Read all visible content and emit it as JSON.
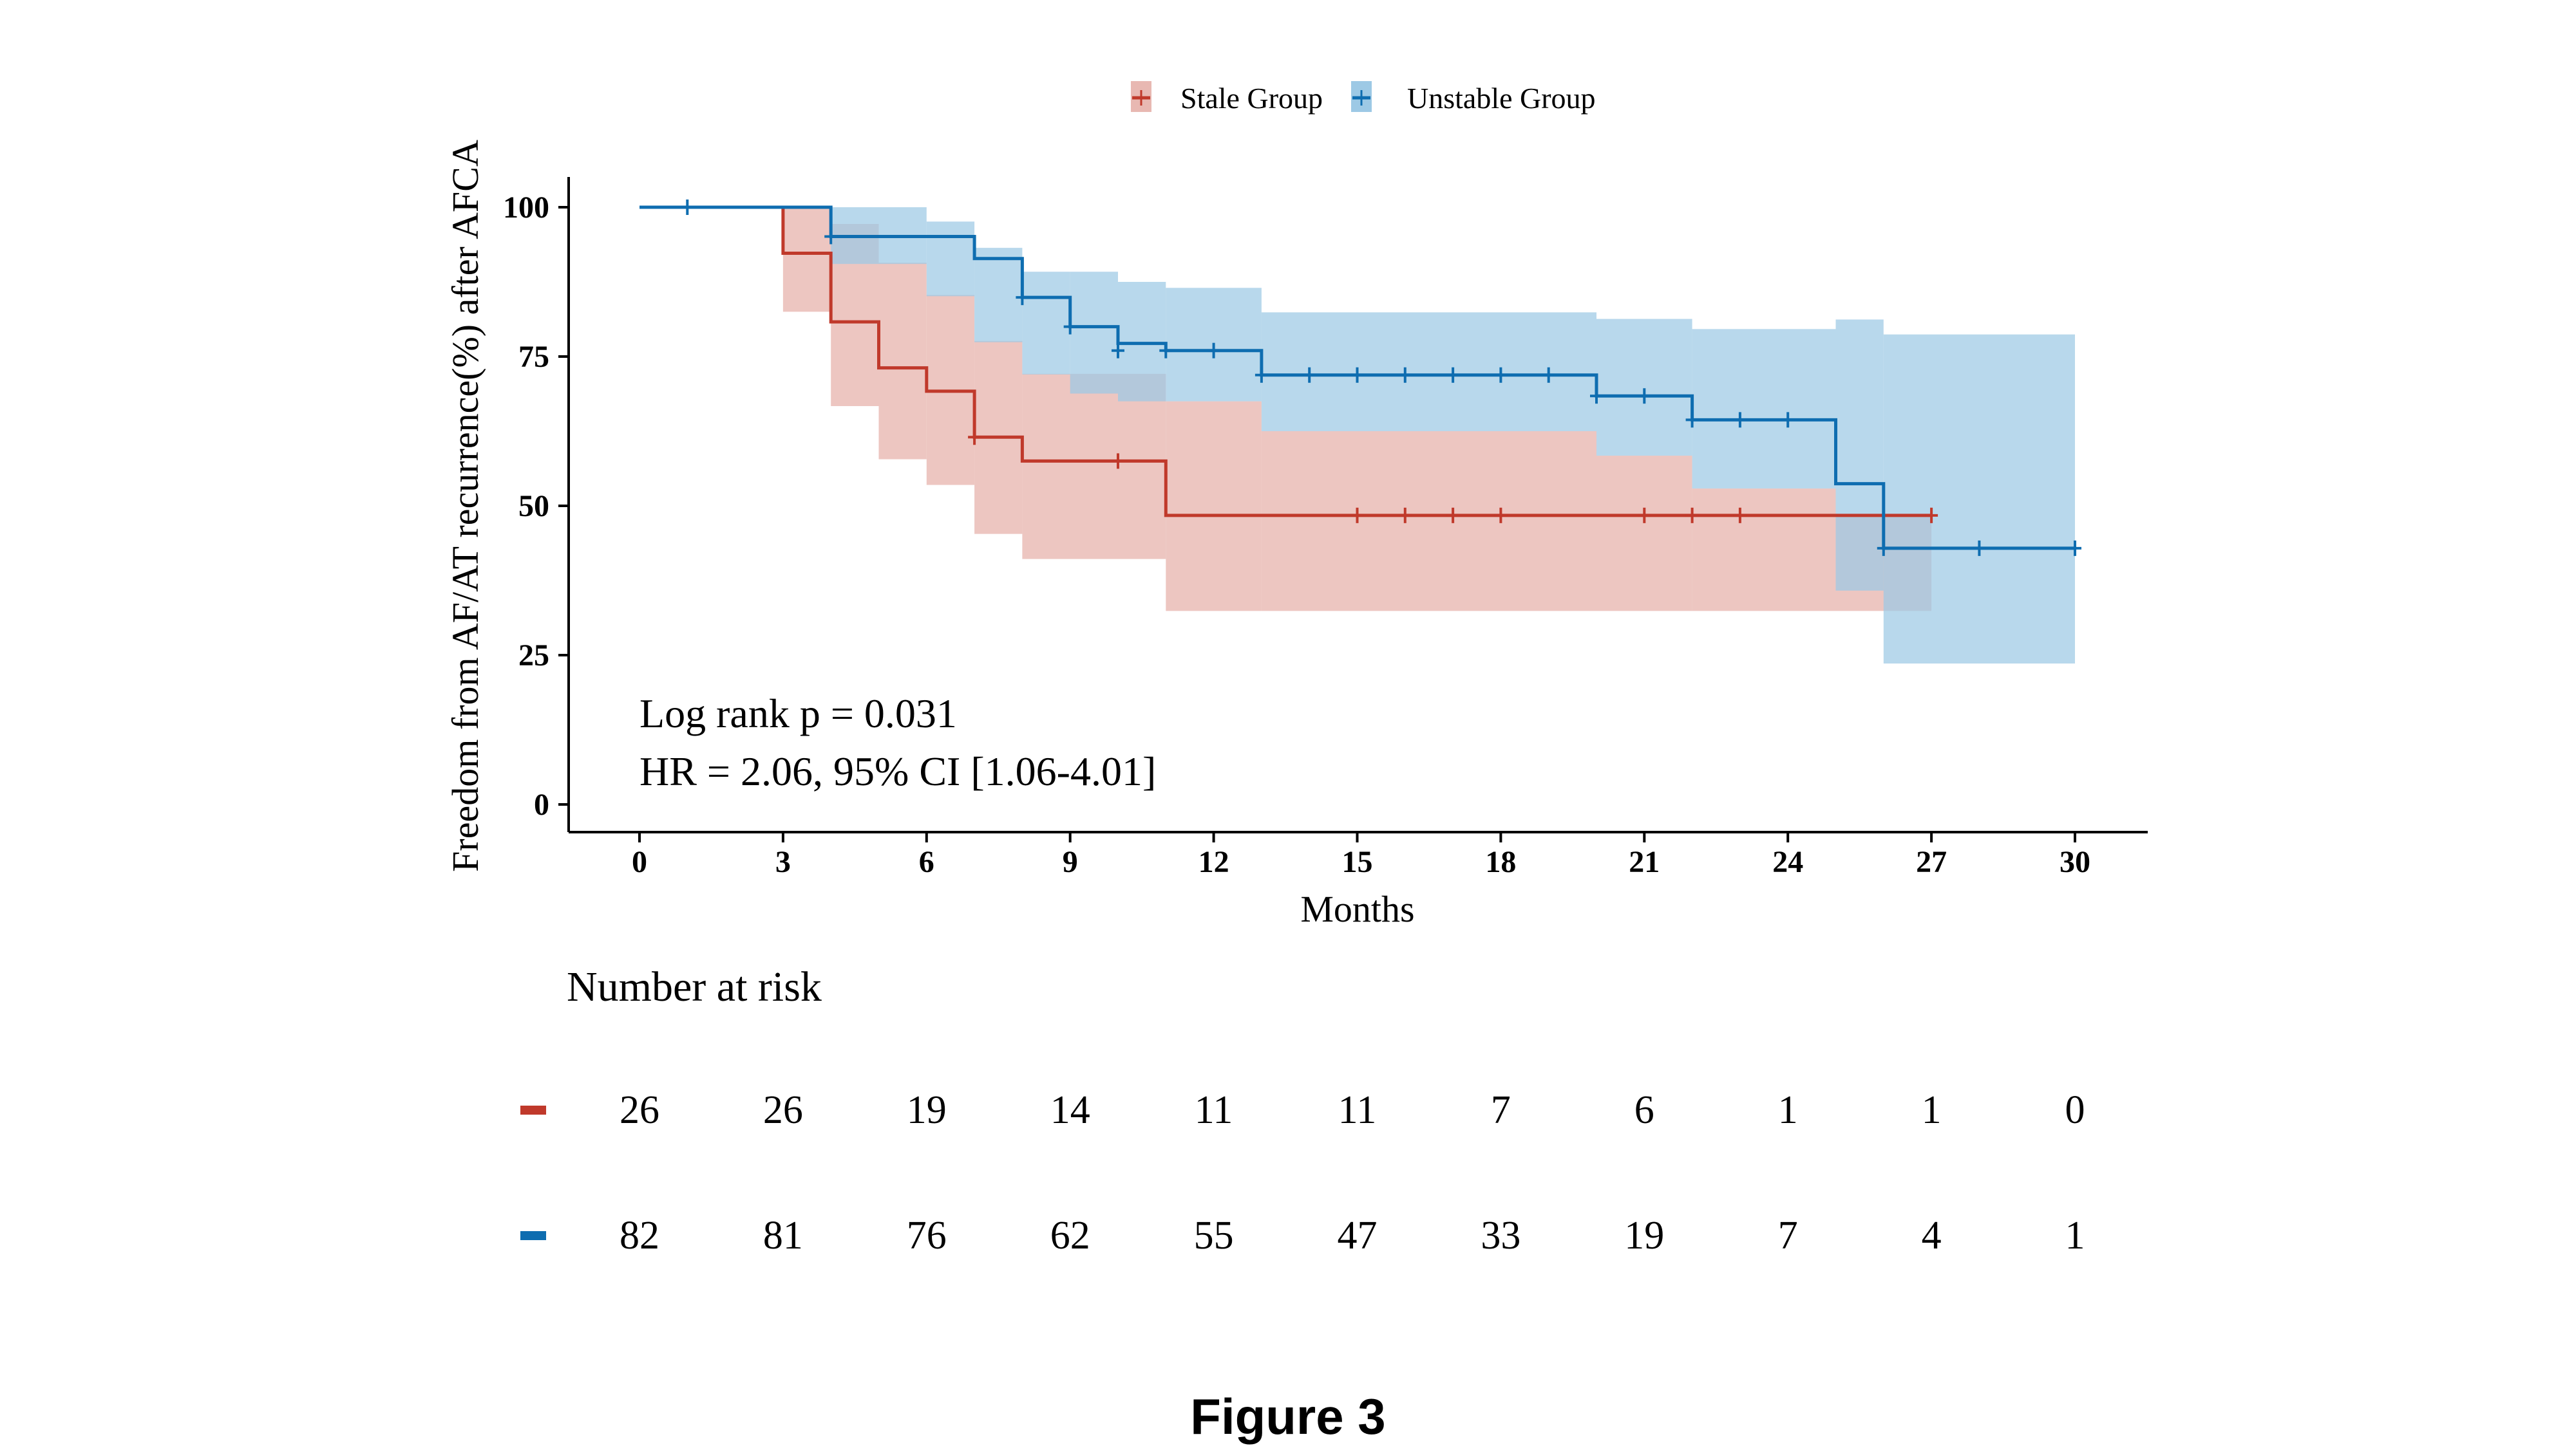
{
  "figure": {
    "caption": "Figure 3"
  },
  "chart_data": {
    "type": "line",
    "subtype": "kaplan-meier step",
    "title": "",
    "xlabel": "Months",
    "ylabel": "Freedom from AF/AT recurrence(%) after AFCA",
    "xlim": [
      0,
      30
    ],
    "ylim": [
      0,
      100
    ],
    "xticks": [
      "0",
      "3",
      "6",
      "9",
      "12",
      "15",
      "18",
      "21",
      "24",
      "27",
      "30"
    ],
    "yticks": [
      "0",
      "25",
      "50",
      "75",
      "100"
    ],
    "grid": false,
    "legend": {
      "position": "top-center",
      "entries": [
        {
          "name": "Stale Group",
          "color": "#C0392B",
          "fill": "#E8B8B2"
        },
        {
          "name": "Unstable Group",
          "color": "#0E6DB0",
          "fill": "#9DC9E5"
        }
      ]
    },
    "annotations": {
      "logrank": "Log rank p = 0.031",
      "hr": "HR = 2.06, 95% CI [1.06-4.01]"
    },
    "series": [
      {
        "name": "Stale Group",
        "color": "#C0392B",
        "steps": [
          [
            0,
            100
          ],
          [
            3,
            92.3
          ],
          [
            4,
            80.8
          ],
          [
            5,
            73.1
          ],
          [
            6,
            69.2
          ],
          [
            7,
            61.5
          ],
          [
            8,
            57.5
          ],
          [
            11,
            48.4
          ]
        ],
        "end": 27,
        "ci_upper": [
          [
            3,
            100
          ],
          [
            4,
            97.2
          ],
          [
            5,
            90.7
          ],
          [
            6,
            85.3
          ],
          [
            7,
            77.6
          ],
          [
            8,
            72.1
          ],
          [
            11,
            67.5
          ],
          [
            13,
            62.5
          ],
          [
            20,
            58.4
          ],
          [
            22,
            52.9
          ],
          [
            25,
            48.4
          ]
        ],
        "ci_lower": [
          [
            3,
            82.5
          ],
          [
            4,
            66.7
          ],
          [
            5,
            57.8
          ],
          [
            6,
            53.5
          ],
          [
            7,
            45.3
          ],
          [
            8,
            41.1
          ],
          [
            11,
            32.4
          ]
        ],
        "censor": [
          [
            7,
            61.5
          ],
          [
            10,
            57.5
          ],
          [
            15,
            48.4
          ],
          [
            16,
            48.4
          ],
          [
            17,
            48.4
          ],
          [
            18,
            48.4
          ],
          [
            21,
            48.4
          ],
          [
            22,
            48.4
          ],
          [
            23,
            48.4
          ],
          [
            27,
            48.4
          ]
        ]
      },
      {
        "name": "Unstable Group",
        "color": "#0E6DB0",
        "steps": [
          [
            0,
            100
          ],
          [
            4,
            95.1
          ],
          [
            7,
            91.4
          ],
          [
            8,
            84.9
          ],
          [
            9,
            80.0
          ],
          [
            10,
            77.2
          ],
          [
            11,
            76.0
          ],
          [
            13,
            71.9
          ],
          [
            20,
            68.4
          ],
          [
            22,
            64.4
          ],
          [
            25,
            53.7
          ],
          [
            26,
            42.9
          ]
        ],
        "end": 30,
        "ci_upper": [
          [
            4,
            100
          ],
          [
            6,
            97.6
          ],
          [
            7,
            93.2
          ],
          [
            8,
            89.2
          ],
          [
            10,
            87.5
          ],
          [
            11,
            86.5
          ],
          [
            13,
            82.4
          ],
          [
            20,
            81.3
          ],
          [
            22,
            79.6
          ],
          [
            25,
            81.2
          ],
          [
            26,
            78.7
          ]
        ],
        "ci_lower": [
          [
            4,
            90.5
          ],
          [
            5,
            90.5
          ],
          [
            6,
            85.1
          ],
          [
            7,
            77.4
          ],
          [
            8,
            72.0
          ],
          [
            9,
            68.8
          ],
          [
            10,
            67.5
          ],
          [
            13,
            62.5
          ],
          [
            20,
            58.4
          ],
          [
            22,
            52.9
          ],
          [
            25,
            35.8
          ],
          [
            26,
            23.6
          ]
        ],
        "censor": [
          [
            1,
            100
          ],
          [
            4,
            95.1
          ],
          [
            8,
            84.9
          ],
          [
            9,
            80.0
          ],
          [
            10,
            76.0
          ],
          [
            11,
            76.0
          ],
          [
            12,
            76.0
          ],
          [
            13,
            71.9
          ],
          [
            14,
            71.9
          ],
          [
            15,
            71.9
          ],
          [
            16,
            71.9
          ],
          [
            17,
            71.9
          ],
          [
            18,
            71.9
          ],
          [
            19,
            71.9
          ],
          [
            20,
            68.4
          ],
          [
            21,
            68.4
          ],
          [
            22,
            64.4
          ],
          [
            23,
            64.4
          ],
          [
            24,
            64.4
          ],
          [
            26,
            42.9
          ],
          [
            28,
            42.9
          ],
          [
            30,
            42.9
          ]
        ]
      }
    ],
    "risk_table": {
      "title": "Number at risk",
      "times": [
        0,
        3,
        6,
        9,
        12,
        15,
        18,
        21,
        24,
        27,
        30
      ],
      "rows": [
        {
          "group": "Stale Group",
          "color": "#C0392B",
          "values": [
            "26",
            "26",
            "19",
            "14",
            "11",
            "11",
            "7",
            "6",
            "1",
            "1",
            "0"
          ]
        },
        {
          "group": "Unstable Group",
          "color": "#0E6DB0",
          "values": [
            "82",
            "81",
            "76",
            "62",
            "55",
            "47",
            "33",
            "19",
            "7",
            "4",
            "1"
          ]
        }
      ]
    }
  }
}
